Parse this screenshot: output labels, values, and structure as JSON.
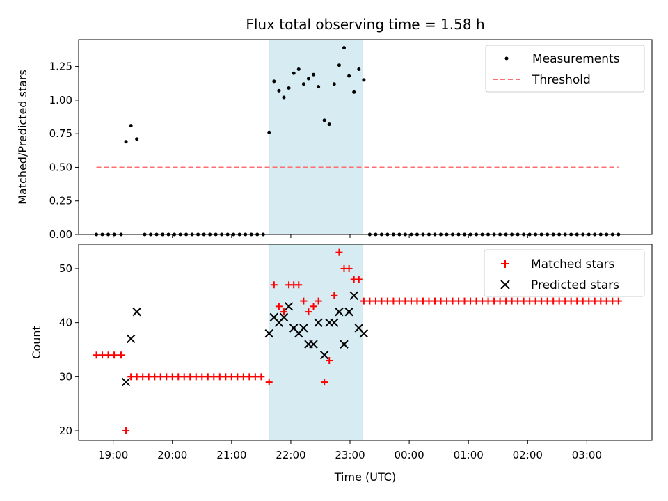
{
  "chart_data": [
    {
      "type": "scatter",
      "title": "Flux total observing time = 1.58 h",
      "xlabel": "",
      "ylabel": "Matched/Predicted stars",
      "xlim": [
        "18:25",
        "04:06"
      ],
      "ylim": [
        0,
        1.45
      ],
      "x_ticks": [
        "19:00",
        "20:00",
        "21:00",
        "22:00",
        "23:00",
        "00:00",
        "01:00",
        "02:00",
        "03:00"
      ],
      "y_ticks": [
        "0.00",
        "0.25",
        "0.50",
        "0.75",
        "1.00",
        "1.25"
      ],
      "grid": false,
      "legend_position": "top-right",
      "shaded_region": {
        "x": [
          "21:38",
          "23:13"
        ],
        "color": "#add8e6"
      },
      "series": [
        {
          "name": "Measurements",
          "kind": "points",
          "color": "#000000",
          "points": [
            [
              "18:43",
              0
            ],
            [
              "18:49",
              0
            ],
            [
              "18:55",
              0
            ],
            [
              "19:01",
              0
            ],
            [
              "19:08",
              0
            ],
            [
              "19:13",
              0.69
            ],
            [
              "19:18",
              0.81
            ],
            [
              "19:24",
              0.71
            ],
            [
              "19:32",
              0
            ],
            [
              "19:38",
              0
            ],
            [
              "19:44",
              0
            ],
            [
              "19:50",
              0
            ],
            [
              "19:56",
              0
            ],
            [
              "20:02",
              0
            ],
            [
              "20:08",
              0
            ],
            [
              "20:14",
              0
            ],
            [
              "20:20",
              0
            ],
            [
              "20:26",
              0
            ],
            [
              "20:32",
              0
            ],
            [
              "20:38",
              0
            ],
            [
              "20:44",
              0
            ],
            [
              "20:50",
              0
            ],
            [
              "20:56",
              0
            ],
            [
              "21:02",
              0
            ],
            [
              "21:08",
              0
            ],
            [
              "21:14",
              0
            ],
            [
              "21:20",
              0
            ],
            [
              "21:26",
              0
            ],
            [
              "21:32",
              0
            ],
            [
              "21:38",
              0.76
            ],
            [
              "21:43",
              1.14
            ],
            [
              "21:48",
              1.07
            ],
            [
              "21:53",
              1.02
            ],
            [
              "21:58",
              1.09
            ],
            [
              "22:03",
              1.2
            ],
            [
              "22:08",
              1.23
            ],
            [
              "22:13",
              1.12
            ],
            [
              "22:18",
              1.16
            ],
            [
              "22:23",
              1.19
            ],
            [
              "22:28",
              1.1
            ],
            [
              "22:34",
              0.85
            ],
            [
              "22:39",
              0.82
            ],
            [
              "22:44",
              1.12
            ],
            [
              "22:49",
              1.26
            ],
            [
              "22:54",
              1.39
            ],
            [
              "22:59",
              1.18
            ],
            [
              "23:04",
              1.06
            ],
            [
              "23:09",
              1.23
            ],
            [
              "23:14",
              1.15
            ],
            [
              "23:20",
              0
            ],
            [
              "23:26",
              0
            ],
            [
              "23:32",
              0
            ],
            [
              "23:38",
              0
            ],
            [
              "23:44",
              0
            ],
            [
              "23:50",
              0
            ],
            [
              "23:56",
              0
            ],
            [
              "00:02",
              0
            ],
            [
              "00:08",
              0
            ],
            [
              "00:14",
              0
            ],
            [
              "00:20",
              0
            ],
            [
              "00:26",
              0
            ],
            [
              "00:32",
              0
            ],
            [
              "00:38",
              0
            ],
            [
              "00:44",
              0
            ],
            [
              "00:50",
              0
            ],
            [
              "00:56",
              0
            ],
            [
              "01:02",
              0
            ],
            [
              "01:08",
              0
            ],
            [
              "01:14",
              0
            ],
            [
              "01:20",
              0
            ],
            [
              "01:26",
              0
            ],
            [
              "01:32",
              0
            ],
            [
              "01:38",
              0
            ],
            [
              "01:44",
              0
            ],
            [
              "01:50",
              0
            ],
            [
              "01:56",
              0
            ],
            [
              "02:02",
              0
            ],
            [
              "02:08",
              0
            ],
            [
              "02:14",
              0
            ],
            [
              "02:20",
              0
            ],
            [
              "02:26",
              0
            ],
            [
              "02:32",
              0
            ],
            [
              "02:38",
              0
            ],
            [
              "02:44",
              0
            ],
            [
              "02:50",
              0
            ],
            [
              "02:56",
              0
            ],
            [
              "03:02",
              0
            ],
            [
              "03:08",
              0
            ],
            [
              "03:14",
              0
            ],
            [
              "03:20",
              0
            ],
            [
              "03:26",
              0
            ],
            [
              "03:32",
              0
            ]
          ]
        },
        {
          "name": "Threshold",
          "kind": "dashed-line",
          "color": "#ff6f6f",
          "points": [
            [
              "18:43",
              0.5
            ],
            [
              "03:32",
              0.5
            ]
          ]
        }
      ]
    },
    {
      "type": "scatter",
      "title": "",
      "xlabel": "Time (UTC)",
      "ylabel": "Count",
      "xlim": [
        "18:25",
        "04:06"
      ],
      "ylim": [
        18.2,
        54.5
      ],
      "x_ticks": [
        "19:00",
        "20:00",
        "21:00",
        "22:00",
        "23:00",
        "00:00",
        "01:00",
        "02:00",
        "03:00"
      ],
      "y_ticks": [
        "20",
        "30",
        "40",
        "50"
      ],
      "grid": false,
      "legend_position": "top-right",
      "shaded_region": {
        "x": [
          "21:38",
          "23:13"
        ],
        "color": "#add8e6"
      },
      "series": [
        {
          "name": "Matched stars",
          "kind": "plus",
          "color": "#ff0000",
          "points": [
            [
              "18:43",
              34
            ],
            [
              "18:49",
              34
            ],
            [
              "18:55",
              34
            ],
            [
              "19:01",
              34
            ],
            [
              "19:08",
              34
            ],
            [
              "19:13",
              20
            ],
            [
              "19:18",
              30
            ],
            [
              "19:24",
              30
            ],
            [
              "19:30",
              30
            ],
            [
              "19:36",
              30
            ],
            [
              "19:42",
              30
            ],
            [
              "19:48",
              30
            ],
            [
              "19:54",
              30
            ],
            [
              "20:00",
              30
            ],
            [
              "20:06",
              30
            ],
            [
              "20:12",
              30
            ],
            [
              "20:18",
              30
            ],
            [
              "20:24",
              30
            ],
            [
              "20:30",
              30
            ],
            [
              "20:36",
              30
            ],
            [
              "20:42",
              30
            ],
            [
              "20:48",
              30
            ],
            [
              "20:54",
              30
            ],
            [
              "21:00",
              30
            ],
            [
              "21:06",
              30
            ],
            [
              "21:12",
              30
            ],
            [
              "21:18",
              30
            ],
            [
              "21:24",
              30
            ],
            [
              "21:30",
              30
            ],
            [
              "21:38",
              29
            ],
            [
              "21:43",
              47
            ],
            [
              "21:48",
              43
            ],
            [
              "21:53",
              42
            ],
            [
              "21:58",
              47
            ],
            [
              "22:03",
              47
            ],
            [
              "22:08",
              47
            ],
            [
              "22:13",
              44
            ],
            [
              "22:18",
              42
            ],
            [
              "22:23",
              43
            ],
            [
              "22:28",
              44
            ],
            [
              "22:34",
              29
            ],
            [
              "22:39",
              33
            ],
            [
              "22:44",
              45
            ],
            [
              "22:49",
              53
            ],
            [
              "22:54",
              50
            ],
            [
              "22:59",
              50
            ],
            [
              "23:04",
              48
            ],
            [
              "23:09",
              48
            ],
            [
              "23:14",
              44
            ],
            [
              "23:20",
              44
            ],
            [
              "23:26",
              44
            ],
            [
              "23:32",
              44
            ],
            [
              "23:38",
              44
            ],
            [
              "23:44",
              44
            ],
            [
              "23:50",
              44
            ],
            [
              "23:56",
              44
            ],
            [
              "00:02",
              44
            ],
            [
              "00:08",
              44
            ],
            [
              "00:14",
              44
            ],
            [
              "00:20",
              44
            ],
            [
              "00:26",
              44
            ],
            [
              "00:32",
              44
            ],
            [
              "00:38",
              44
            ],
            [
              "00:44",
              44
            ],
            [
              "00:50",
              44
            ],
            [
              "00:56",
              44
            ],
            [
              "01:02",
              44
            ],
            [
              "01:08",
              44
            ],
            [
              "01:14",
              44
            ],
            [
              "01:20",
              44
            ],
            [
              "01:26",
              44
            ],
            [
              "01:32",
              44
            ],
            [
              "01:38",
              44
            ],
            [
              "01:44",
              44
            ],
            [
              "01:50",
              44
            ],
            [
              "01:56",
              44
            ],
            [
              "02:02",
              44
            ],
            [
              "02:08",
              44
            ],
            [
              "02:14",
              44
            ],
            [
              "02:20",
              44
            ],
            [
              "02:26",
              44
            ],
            [
              "02:32",
              44
            ],
            [
              "02:38",
              44
            ],
            [
              "02:44",
              44
            ],
            [
              "02:50",
              44
            ],
            [
              "02:56",
              44
            ],
            [
              "03:02",
              44
            ],
            [
              "03:08",
              44
            ],
            [
              "03:14",
              44
            ],
            [
              "03:20",
              44
            ],
            [
              "03:26",
              44
            ],
            [
              "03:32",
              44
            ]
          ]
        },
        {
          "name": "Predicted stars",
          "kind": "cross",
          "color": "#000000",
          "points": [
            [
              "19:13",
              29
            ],
            [
              "19:18",
              37
            ],
            [
              "19:24",
              42
            ],
            [
              "21:38",
              38
            ],
            [
              "21:43",
              41
            ],
            [
              "21:48",
              40
            ],
            [
              "21:53",
              41
            ],
            [
              "21:58",
              43
            ],
            [
              "22:03",
              39
            ],
            [
              "22:08",
              38
            ],
            [
              "22:13",
              39
            ],
            [
              "22:18",
              36
            ],
            [
              "22:23",
              36
            ],
            [
              "22:28",
              40
            ],
            [
              "22:34",
              34
            ],
            [
              "22:39",
              40
            ],
            [
              "22:44",
              40
            ],
            [
              "22:49",
              42
            ],
            [
              "22:54",
              36
            ],
            [
              "22:59",
              42
            ],
            [
              "23:04",
              45
            ],
            [
              "23:09",
              39
            ],
            [
              "23:14",
              38
            ]
          ]
        }
      ]
    }
  ]
}
